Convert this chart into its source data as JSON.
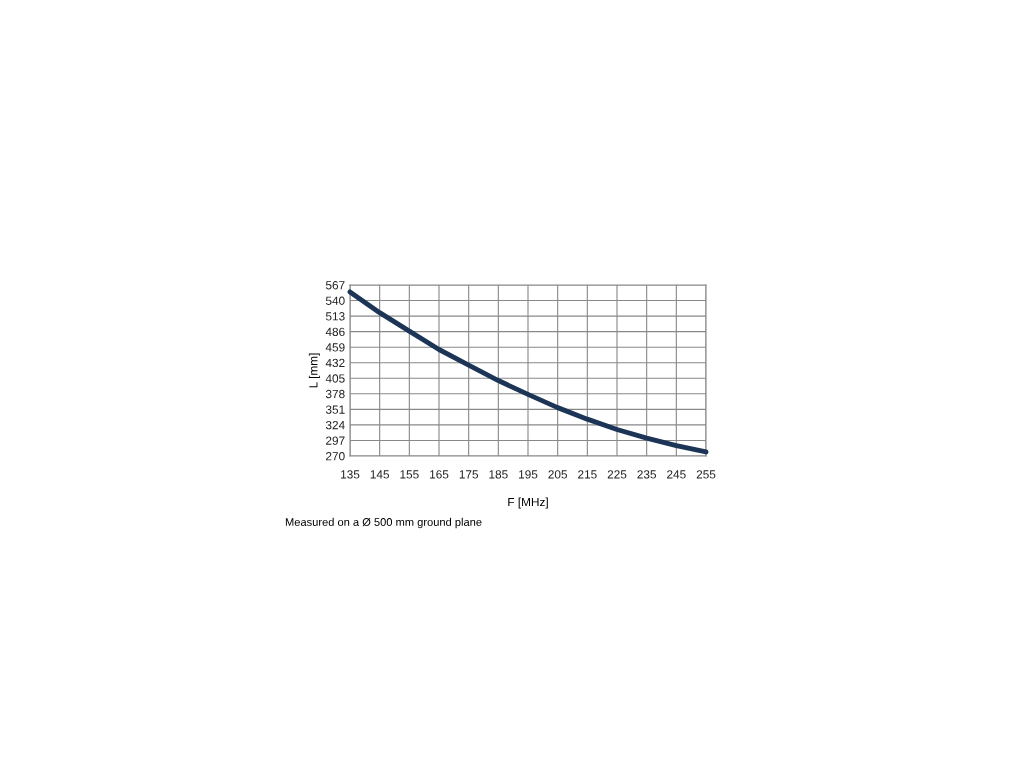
{
  "chart_data": {
    "type": "line",
    "xlabel": "F [MHz]",
    "ylabel": "L [mm]",
    "annotations": [
      "Measured on a Ø 500 mm ground plane"
    ],
    "x": [
      135,
      145,
      155,
      165,
      175,
      185,
      195,
      205,
      215,
      225,
      235,
      245,
      255
    ],
    "series": [
      {
        "color": "#1c3557",
        "values": [
          555,
          519,
          487,
          455,
          428,
          401,
          377,
          354,
          334,
          316,
          301,
          288,
          277
        ]
      }
    ],
    "xlim": [
      135,
      255
    ],
    "xticks": [
      135,
      145,
      155,
      165,
      175,
      185,
      195,
      205,
      215,
      225,
      235,
      245,
      255
    ],
    "ylim": [
      270,
      567
    ],
    "yticks": [
      270,
      297,
      324,
      351,
      378,
      405,
      432,
      459,
      486,
      513,
      540,
      567
    ],
    "grid": true,
    "marker": "none",
    "line_style": "solid"
  }
}
